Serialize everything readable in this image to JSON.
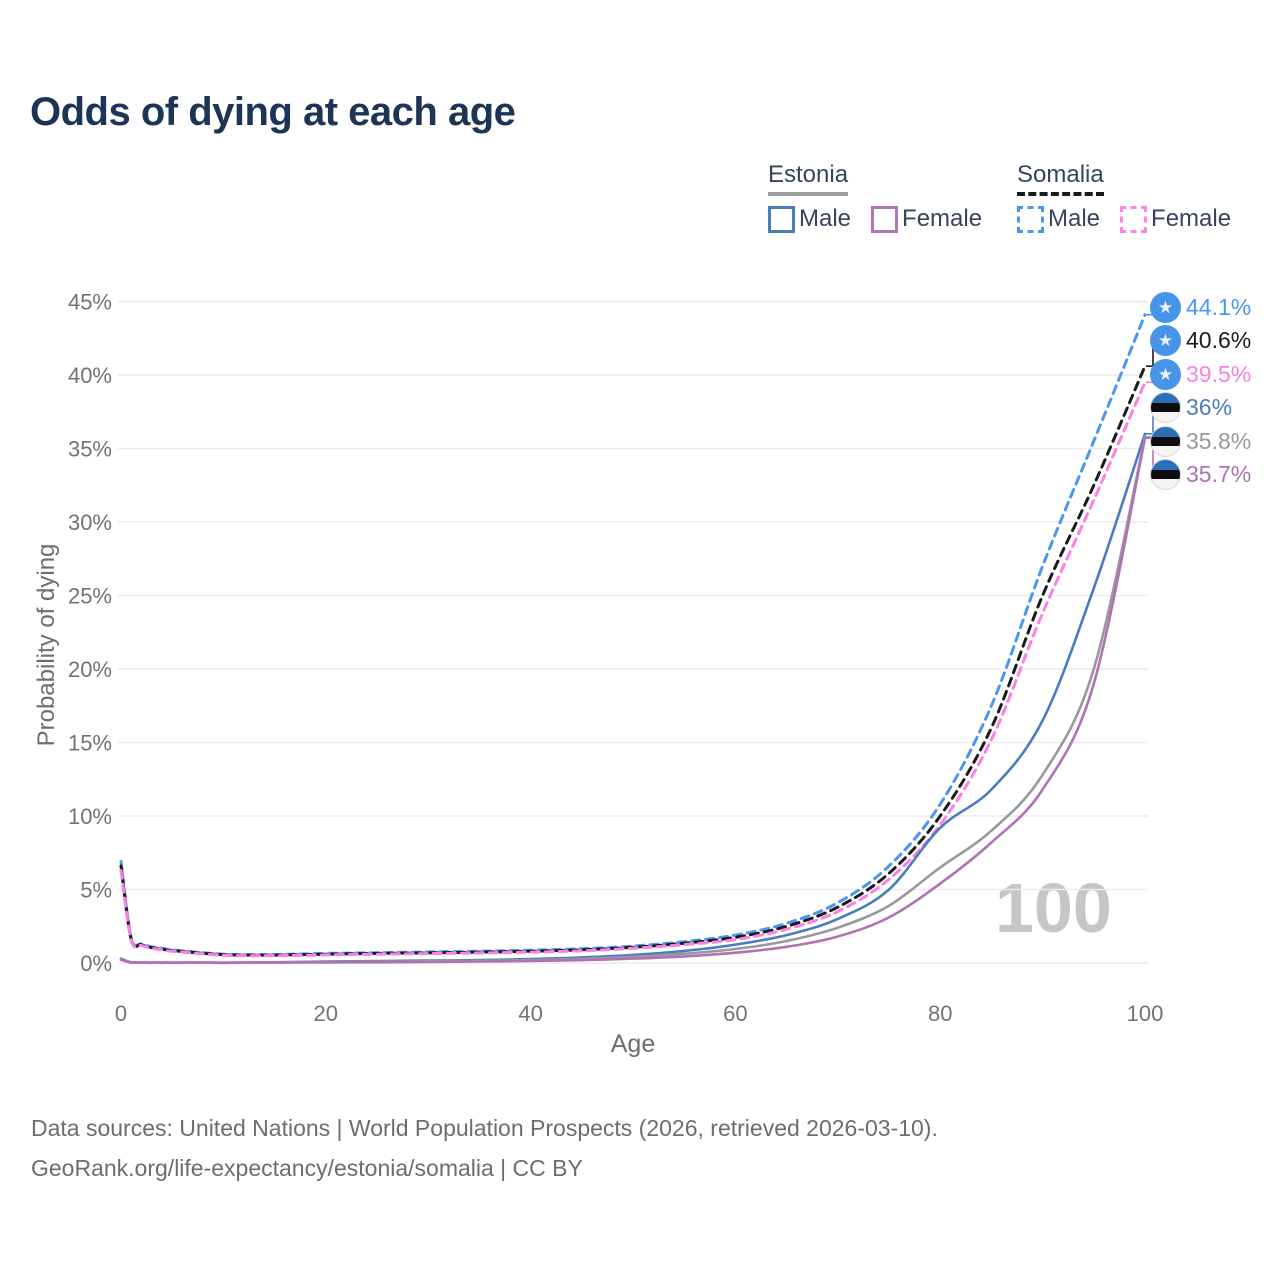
{
  "header": {
    "title": "Odds of dying at each age"
  },
  "legend": {
    "groups": [
      {
        "country": "Estonia",
        "underline_style": "solid",
        "underline_color": "#9e9ea4",
        "items": [
          {
            "label": "Male",
            "color": "#4a7cc0",
            "border_style": "solid"
          },
          {
            "label": "Female",
            "color": "#b077b6",
            "border_style": "solid"
          }
        ]
      },
      {
        "country": "Somalia",
        "underline_style": "dashed",
        "underline_color": "#1b1b1b",
        "items": [
          {
            "label": "Male",
            "color": "#4b96f3",
            "border_style": "dashed"
          },
          {
            "label": "Female",
            "color": "#fb86ea",
            "border_style": "dashed"
          }
        ]
      }
    ]
  },
  "chart_data": {
    "type": "line",
    "title": "Odds of dying at each age",
    "xlabel": "Age",
    "ylabel": "Probability of dying",
    "xlim": [
      0,
      100
    ],
    "ylim": [
      0,
      45
    ],
    "x_ticks": [
      0,
      20,
      40,
      60,
      80,
      100
    ],
    "y_ticks": [
      0,
      5,
      10,
      15,
      20,
      25,
      30,
      35,
      40,
      45
    ],
    "y_tick_labels": [
      "0%",
      "5%",
      "10%",
      "15%",
      "20%",
      "25%",
      "30%",
      "35%",
      "40%",
      "45%"
    ],
    "grid": true,
    "legend_position": "top-right",
    "watermark": "100",
    "ages": [
      0,
      1,
      2,
      3,
      4,
      5,
      10,
      15,
      20,
      25,
      30,
      35,
      40,
      45,
      50,
      55,
      60,
      65,
      70,
      75,
      80,
      85,
      90,
      95,
      100
    ],
    "series": [
      {
        "name": "Somalia Male",
        "country": "Somalia",
        "sex": "Male",
        "color": "#4b96f3",
        "dash": true,
        "flag": "somalia",
        "end_label": "44.1%",
        "end_value": 44.1,
        "values": [
          6.9,
          1.7,
          1.3,
          1.1,
          1.0,
          0.9,
          0.6,
          0.58,
          0.65,
          0.7,
          0.75,
          0.8,
          0.87,
          0.97,
          1.15,
          1.45,
          1.9,
          2.7,
          4.1,
          6.6,
          10.8,
          17.5,
          27.0,
          35.5,
          44.1
        ]
      },
      {
        "name": "Somalia",
        "country": "Somalia",
        "sex": "Both",
        "color": "#1b1b1b",
        "dash": true,
        "flag": "somalia",
        "end_label": "40.6%",
        "end_value": 40.6,
        "values": [
          6.6,
          1.6,
          1.25,
          1.05,
          0.95,
          0.85,
          0.57,
          0.54,
          0.6,
          0.65,
          0.69,
          0.74,
          0.8,
          0.9,
          1.07,
          1.35,
          1.75,
          2.5,
          3.8,
          6.1,
          10.0,
          16.0,
          25.0,
          32.5,
          40.6
        ]
      },
      {
        "name": "Somalia Female",
        "country": "Somalia",
        "sex": "Female",
        "color": "#fb7fe4",
        "dash": true,
        "flag": "somalia",
        "end_label": "39.5%",
        "end_value": 39.5,
        "values": [
          6.3,
          1.55,
          1.2,
          1.0,
          0.9,
          0.8,
          0.53,
          0.5,
          0.55,
          0.6,
          0.64,
          0.68,
          0.74,
          0.83,
          1.0,
          1.25,
          1.6,
          2.3,
          3.5,
          5.7,
          9.4,
          15.2,
          23.8,
          31.5,
          39.5
        ]
      },
      {
        "name": "Estonia Male",
        "country": "Estonia",
        "sex": "Male",
        "color": "#4a7cc0",
        "dash": false,
        "flag": "estonia",
        "end_label": "36%",
        "end_value": 36,
        "values": [
          0.3,
          0.05,
          0.03,
          0.02,
          0.02,
          0.02,
          0.02,
          0.05,
          0.1,
          0.13,
          0.16,
          0.2,
          0.27,
          0.38,
          0.55,
          0.82,
          1.25,
          1.9,
          3.0,
          5.0,
          9.2,
          11.8,
          16.5,
          25.5,
          36.0
        ]
      },
      {
        "name": "Estonia",
        "country": "Estonia",
        "sex": "Both",
        "color": "#98989d",
        "dash": false,
        "flag": "estonia",
        "end_label": "35.8%",
        "end_value": 35.8,
        "values": [
          0.25,
          0.04,
          0.03,
          0.02,
          0.02,
          0.02,
          0.015,
          0.04,
          0.07,
          0.09,
          0.12,
          0.15,
          0.2,
          0.28,
          0.42,
          0.63,
          0.95,
          1.5,
          2.4,
          3.9,
          6.5,
          9.0,
          12.8,
          20.0,
          35.8
        ]
      },
      {
        "name": "Estonia Female",
        "country": "Estonia",
        "sex": "Female",
        "color": "#af72b2",
        "dash": false,
        "flag": "estonia",
        "end_label": "35.7%",
        "end_value": 35.7,
        "values": [
          0.22,
          0.03,
          0.02,
          0.015,
          0.015,
          0.015,
          0.01,
          0.03,
          0.04,
          0.05,
          0.07,
          0.1,
          0.14,
          0.2,
          0.3,
          0.45,
          0.7,
          1.1,
          1.8,
          3.1,
          5.4,
          8.2,
          11.8,
          19.0,
          35.7
        ]
      }
    ]
  },
  "footer": {
    "line1": "Data sources: United Nations | World Population Prospects (2026, retrieved 2026-03-10).",
    "line2": "GeoRank.org/life-expectancy/estonia/somalia | CC BY"
  }
}
